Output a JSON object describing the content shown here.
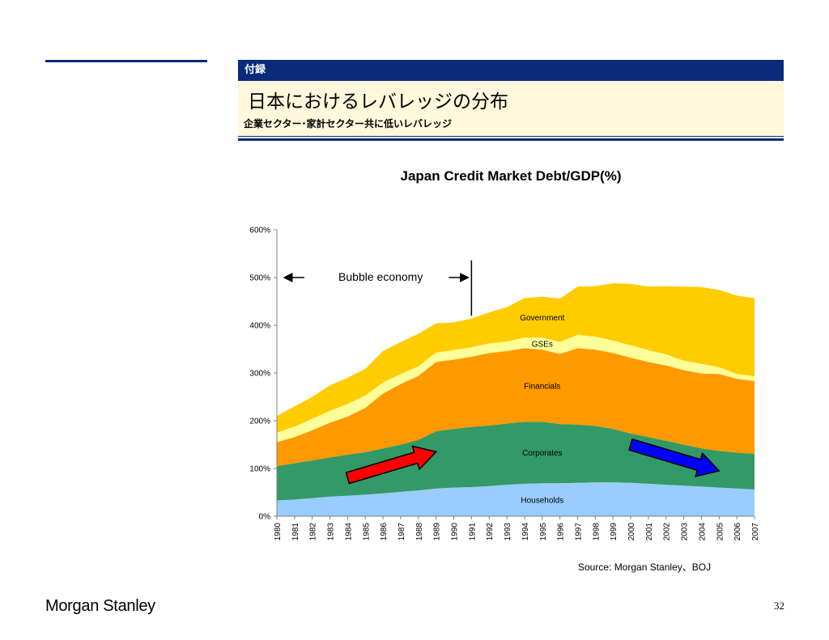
{
  "header": {
    "section_label": "付録",
    "title": "日本におけるレバレッジの分布",
    "subtitle": "企業セクター･家計セクター共に低いレバレッジ"
  },
  "footer": {
    "source": "Source: Morgan Stanley、BOJ",
    "logo_text": "Morgan Stanley",
    "page_number": "32"
  },
  "colors": {
    "brand_navy": "#0a2a7a",
    "title_panel": "#fff8dc",
    "households": "#99ccff",
    "corporates": "#339966",
    "financials": "#ff9900",
    "gses": "#ffff99",
    "government": "#ffcc00",
    "up_arrow": "#ff0000",
    "down_arrow": "#0000ff"
  },
  "chart_data": {
    "type": "area",
    "stacked": true,
    "title": "Japan Credit Market Debt/GDP(%)",
    "x": [
      "1980",
      "1981",
      "1982",
      "1983",
      "1984",
      "1985",
      "1986",
      "1987",
      "1988",
      "1989",
      "1990",
      "1991",
      "1992",
      "1993",
      "1994",
      "1995",
      "1996",
      "1997",
      "1998",
      "1999",
      "2000",
      "2001",
      "2002",
      "2003",
      "2004",
      "2005",
      "2006",
      "2007"
    ],
    "y_ticks": [
      "0%",
      "100%",
      "200%",
      "300%",
      "400%",
      "500%",
      "600%"
    ],
    "ylim": [
      0,
      600
    ],
    "series": [
      {
        "name": "Households",
        "color": "#99ccff",
        "values": [
          33,
          35,
          38,
          41,
          43,
          45,
          48,
          51,
          54,
          58,
          60,
          61,
          63,
          66,
          68,
          69,
          69,
          70,
          71,
          71,
          70,
          68,
          66,
          64,
          62,
          60,
          58,
          56
        ]
      },
      {
        "name": "Corporates",
        "color": "#339966",
        "values": [
          72,
          76,
          79,
          82,
          86,
          89,
          94,
          99,
          106,
          120,
          123,
          126,
          127,
          128,
          130,
          129,
          124,
          122,
          118,
          112,
          103,
          98,
          92,
          86,
          80,
          77,
          75,
          75
        ]
      },
      {
        "name": "Financials",
        "color": "#ff9900",
        "values": [
          50,
          55,
          63,
          73,
          80,
          93,
          115,
          127,
          134,
          145,
          145,
          147,
          152,
          152,
          154,
          151,
          147,
          160,
          160,
          159,
          159,
          157,
          158,
          156,
          157,
          161,
          155,
          152
        ]
      },
      {
        "name": "GSEs",
        "color": "#ffff99",
        "values": [
          20,
          22,
          24,
          25,
          26,
          26,
          23,
          21,
          20,
          20,
          20,
          20,
          20,
          20,
          22,
          25,
          25,
          28,
          27,
          26,
          26,
          25,
          23,
          20,
          20,
          14,
          10,
          10
        ]
      },
      {
        "name": "Government",
        "color": "#ffcc00",
        "values": [
          35,
          42,
          46,
          53,
          55,
          56,
          66,
          67,
          68,
          61,
          58,
          60,
          65,
          72,
          83,
          86,
          91,
          101,
          106,
          120,
          129,
          133,
          143,
          155,
          161,
          162,
          164,
          164
        ]
      }
    ],
    "annotations": [
      {
        "text": "Bubble economy",
        "type": "span",
        "x_start": "1980",
        "x_end": "1991",
        "y": 500
      },
      {
        "text": "",
        "type": "arrow-up",
        "color": "#ff0000",
        "from": [
          "1984",
          80
        ],
        "to": [
          "1989",
          135
        ]
      },
      {
        "text": "",
        "type": "arrow-down",
        "color": "#0000ff",
        "from": [
          "2000",
          150
        ],
        "to": [
          "2005",
          95
        ]
      }
    ],
    "grid": false,
    "legend": "inline labels"
  }
}
